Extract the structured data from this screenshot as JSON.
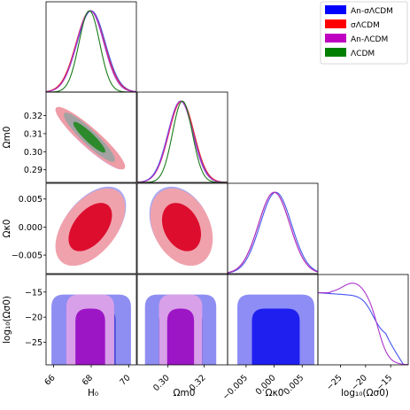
{
  "chart_data": {
    "type": "corner",
    "params": [
      {
        "key": "H0",
        "label": "H₀",
        "ticks": [
          66,
          68,
          70
        ],
        "range": [
          65.6,
          70.4
        ]
      },
      {
        "key": "Om0",
        "label": "Ωm0",
        "ticks": [
          0.3,
          0.32
        ],
        "tick_text": [
          "0.30",
          "0.32"
        ],
        "range": [
          0.283,
          0.333
        ]
      },
      {
        "key": "Ok0",
        "label": "Ωκ0",
        "ticks": [
          -0.005,
          0.0,
          0.005
        ],
        "tick_text": [
          "−0.005",
          "0.000",
          "0.005"
        ],
        "range": [
          -0.0083,
          0.0078
        ]
      },
      {
        "key": "logOs0",
        "label": "log₁₀(Ωσ0)",
        "ticks": [
          -25,
          -20,
          -15
        ],
        "tick_text": [
          "−25",
          "−20",
          "−15"
        ],
        "range": [
          -29.5,
          -11.5
        ]
      }
    ],
    "row_labels": {
      "Om0": "Ωm0",
      "Ok0": "Ωκ0",
      "logOs0": "log₁₀(Ωσ0)"
    },
    "row_ticks": {
      "Om0": {
        "ticks": [
          0.29,
          0.3,
          0.31,
          0.32
        ],
        "text": [
          "0.29",
          "0.30",
          "0.31",
          "0.32"
        ]
      },
      "Ok0": {
        "ticks": [
          -0.005,
          0.0,
          0.005
        ],
        "text": [
          "−0.005",
          "0.000",
          "0.005"
        ]
      },
      "logOs0": {
        "ticks": [
          -25,
          -20,
          -15
        ],
        "text": [
          "−25",
          "−20",
          "−15"
        ]
      }
    },
    "legend": {
      "placement": "top-right",
      "entries": [
        {
          "name": "An-σΛCDM",
          "color": "#0000ff"
        },
        {
          "name": "σΛCDM",
          "color": "#ff0000"
        },
        {
          "name": "An-ΛCDM",
          "color": "#c000c0"
        },
        {
          "name": "ΛCDM",
          "color": "#008000"
        }
      ]
    },
    "series": [
      {
        "name": "An-σΛCDM",
        "color": "#4455ee",
        "H0": [
          68.0,
          0.75
        ],
        "Om0": [
          0.307,
          0.007
        ],
        "Ok0": [
          0.0003,
          0.0028
        ],
        "logOs0_upper": -18
      },
      {
        "name": "σΛCDM",
        "color": "#e4233a",
        "H0": [
          67.95,
          0.75
        ],
        "Om0": [
          0.3075,
          0.007
        ],
        "Ok0": [
          0.0,
          0.0028
        ]
      },
      {
        "name": "An-ΛCDM",
        "color": "#aa33cc",
        "H0": [
          67.95,
          0.72
        ],
        "Om0": [
          0.307,
          0.0068
        ],
        "Ok0": [
          0.0,
          0.0028
        ],
        "logOs0_upper": -18
      },
      {
        "name": "ΛCDM",
        "color": "#1a7a1a",
        "H0": [
          67.9,
          0.55
        ],
        "Om0": [
          0.308,
          0.0055
        ]
      }
    ],
    "correlations": {
      "H0-Om0": -0.92,
      "H0-Ok0": 0.5,
      "Om0-Ok0": -0.3
    },
    "grid": false
  }
}
